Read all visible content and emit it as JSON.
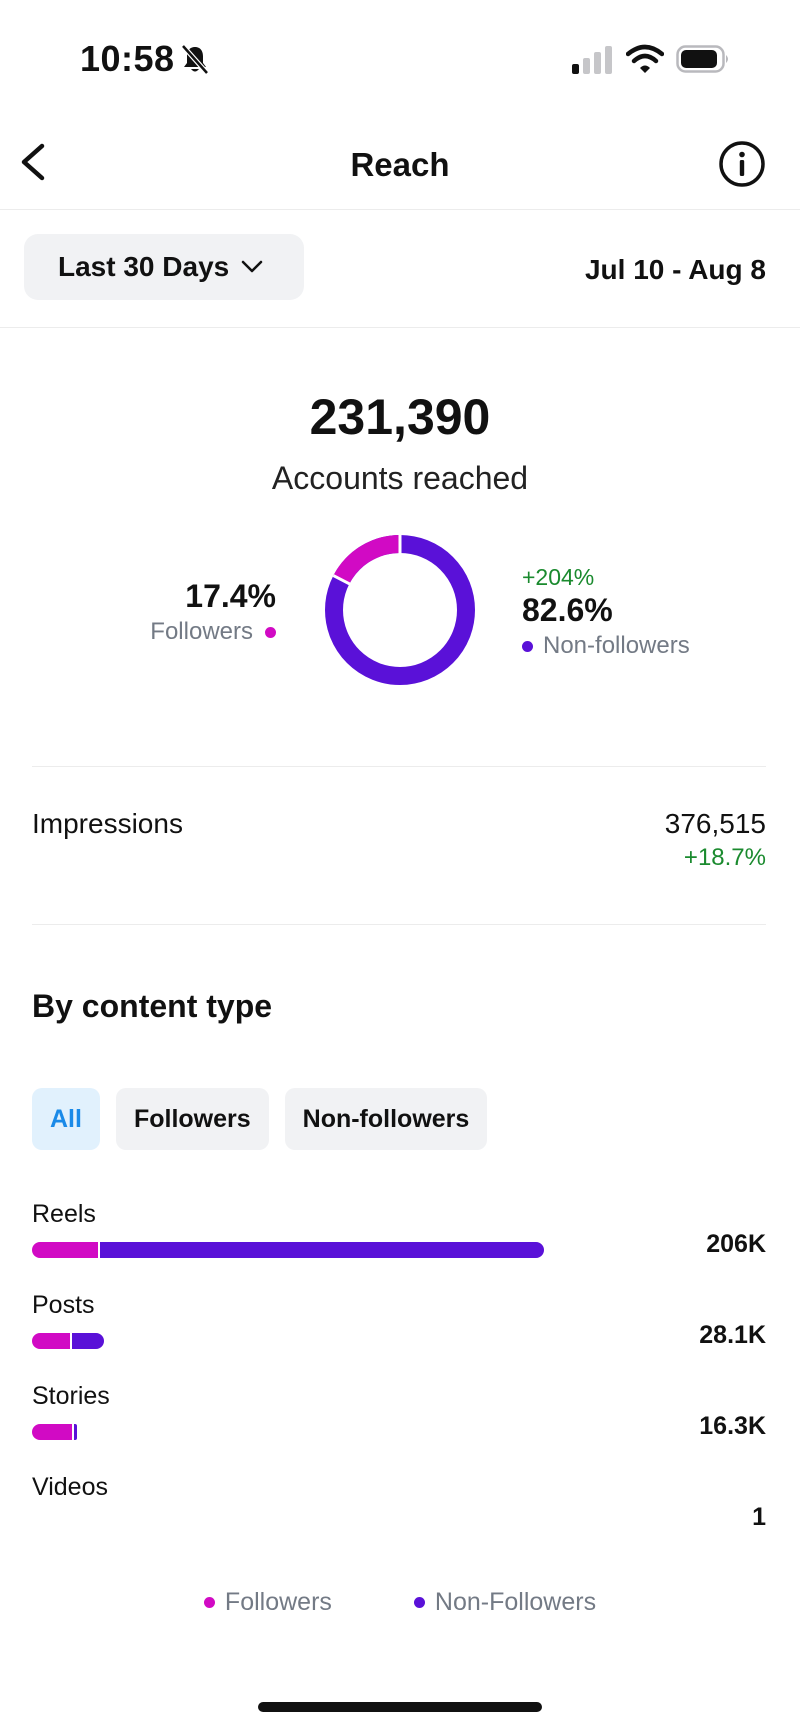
{
  "status": {
    "time": "10:58"
  },
  "nav": {
    "title": "Reach"
  },
  "date": {
    "range_label": "Last 30 Days",
    "range": "Jul 10 - Aug 8"
  },
  "summary": {
    "total": "231,390",
    "label": "Accounts reached",
    "followers_pct": "17.4%",
    "followers_label": "Followers",
    "followers_fraction": 0.174,
    "non_followers_change": "+204%",
    "non_followers_pct": "82.6%",
    "non_followers_label": "Non-followers"
  },
  "impressions": {
    "label": "Impressions",
    "value": "376,515",
    "change": "+18.7%"
  },
  "content_type": {
    "title": "By content type",
    "filters": [
      {
        "label": "All",
        "active": true
      },
      {
        "label": "Followers",
        "active": false
      },
      {
        "label": "Non-followers",
        "active": false
      }
    ],
    "rows": [
      {
        "label": "Reels",
        "value": "206K",
        "total": 206000,
        "followers_fraction": 0.13
      },
      {
        "label": "Posts",
        "value": "28.1K",
        "total": 28100,
        "followers_fraction": 0.55
      },
      {
        "label": "Stories",
        "value": "16.3K",
        "total": 16300,
        "followers_fraction": 0.95
      },
      {
        "label": "Videos",
        "value": "1",
        "total": 1,
        "followers_fraction": 0
      }
    ],
    "legend": {
      "followers": "Followers",
      "non_followers": "Non-Followers"
    }
  },
  "colors": {
    "followers": "#d10ac4",
    "non_followers": "#5a11d8",
    "positive": "#1a8a2e",
    "active_chip": "#1a8ae8"
  }
}
